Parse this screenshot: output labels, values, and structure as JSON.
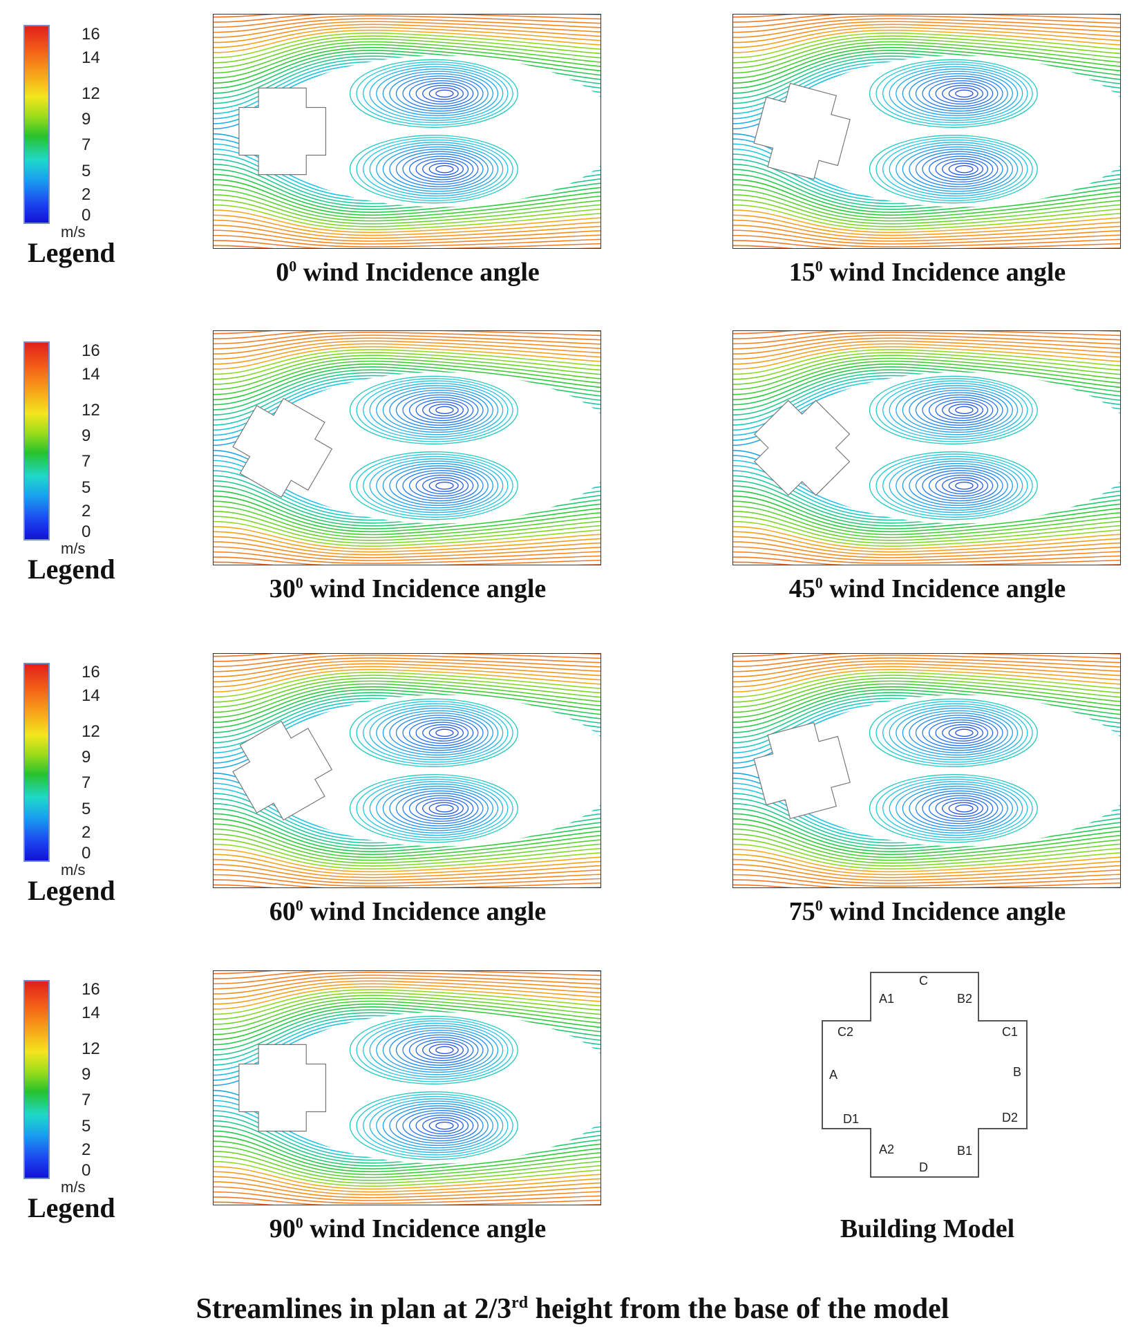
{
  "legend": {
    "ticks": [
      "16",
      "14",
      "12",
      "9",
      "7",
      "5",
      "2",
      "0"
    ],
    "unit": "m/s",
    "title": "Legend",
    "colors": [
      "#e0201a",
      "#f35d17",
      "#f7a019",
      "#f3e61d",
      "#29c22c",
      "#1fd8c9",
      "#1aa0ef",
      "#1212d6"
    ]
  },
  "panels": [
    {
      "angle": "0",
      "sup": "0",
      "text": "wind Incidence angle",
      "rotation_deg": 0
    },
    {
      "angle": "15",
      "sup": "0",
      "text": "wind Incidence angle",
      "rotation_deg": 15
    },
    {
      "angle": "30",
      "sup": "0",
      "text": "wind Incidence angle",
      "rotation_deg": 30
    },
    {
      "angle": "45",
      "sup": "0",
      "text": "wind Incidence angle",
      "rotation_deg": 45
    },
    {
      "angle": "60",
      "sup": "0",
      "text": "wind Incidence angle",
      "rotation_deg": 60
    },
    {
      "angle": "75",
      "sup": "0",
      "text": "wind Incidence angle",
      "rotation_deg": 75
    },
    {
      "angle": "90",
      "sup": "0",
      "text": "wind Incidence angle",
      "rotation_deg": 90
    }
  ],
  "building_model": {
    "title": "Building Model",
    "labels": [
      "C",
      "A1",
      "B2",
      "C2",
      "C1",
      "A",
      "B",
      "D1",
      "D2",
      "A2",
      "B1",
      "D"
    ]
  },
  "footer": {
    "pre": "Streamlines in plan at 2/3",
    "sup": "rd",
    "post": " height from the base of the model"
  }
}
